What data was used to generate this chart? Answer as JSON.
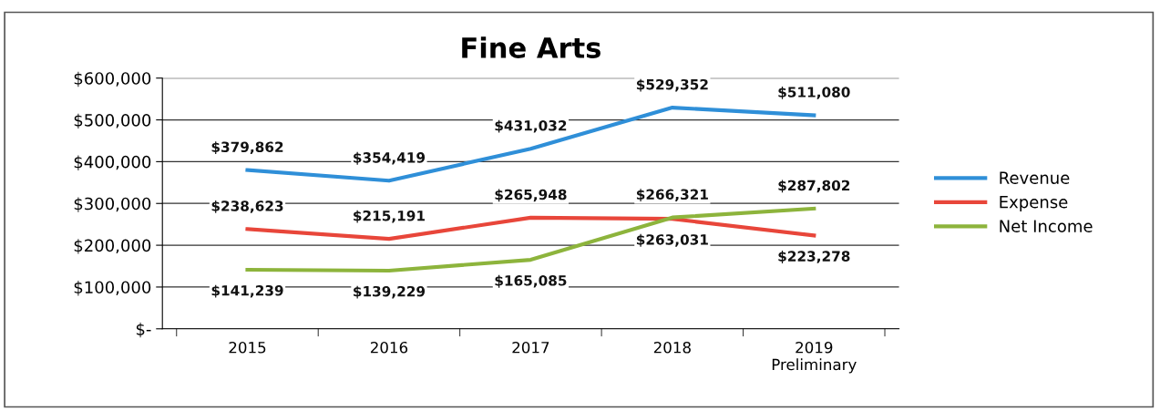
{
  "chart_data": {
    "type": "line",
    "title": "Fine Arts",
    "categories": [
      "2015",
      "2016",
      "2017",
      "2018",
      "2019\nPreliminary"
    ],
    "series": [
      {
        "name": "Revenue",
        "color": "#2f8fd8",
        "values": [
          379862,
          354419,
          431032,
          529352,
          511080
        ],
        "value_labels": [
          "$379,862",
          "$354,419",
          "$431,032",
          "$529,352",
          "$511,080"
        ]
      },
      {
        "name": "Expense",
        "color": "#e8463a",
        "values": [
          238623,
          215191,
          265948,
          263031,
          223278
        ],
        "value_labels": [
          "$238,623",
          "$215,191",
          "$265,948",
          "$263,031",
          "$223,278"
        ]
      },
      {
        "name": "Net Income",
        "color": "#8db43c",
        "values": [
          141239,
          139229,
          165085,
          266321,
          287802
        ],
        "value_labels": [
          "$141,239",
          "$139,229",
          "$165,085",
          "$266,321",
          "$287,802"
        ]
      }
    ],
    "ylim": [
      0,
      600000
    ],
    "yticks": [
      {
        "value": 0,
        "label": "$-"
      },
      {
        "value": 100000,
        "label": "$100,000"
      },
      {
        "value": 200000,
        "label": "$200,000"
      },
      {
        "value": 300000,
        "label": "$300,000"
      },
      {
        "value": 400000,
        "label": "$400,000"
      },
      {
        "value": 500000,
        "label": "$500,000"
      },
      {
        "value": 600000,
        "label": "$600,000"
      }
    ],
    "grid": "y",
    "legend": "right",
    "marker": "none",
    "line_style": "solid"
  }
}
